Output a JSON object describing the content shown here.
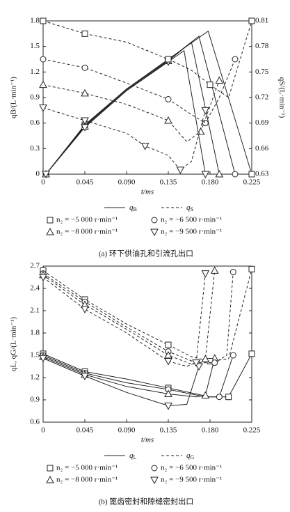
{
  "chart_data": [
    {
      "type": "line",
      "caption": "(a) 环下供油孔和引流孔出口",
      "x_label": "t/ms",
      "y_label": "qB/(L·min⁻¹)",
      "y2_label": "qS/(L·min⁻¹)",
      "xlim": [
        0,
        0.225
      ],
      "xticks": [
        0,
        0.045,
        {
          "value": 0.09,
          "label": "0.090"
        },
        0.135,
        {
          "value": 0.18,
          "label": "0.180"
        },
        0.225
      ],
      "ylim": [
        0,
        1.8
      ],
      "yticks": [
        0,
        0.3,
        0.6,
        0.9,
        1.2,
        1.5,
        1.8
      ],
      "y2lim": [
        0.63,
        0.81
      ],
      "y2ticks": [
        0.63,
        0.66,
        0.69,
        0.72,
        0.75,
        0.78,
        0.81
      ],
      "speeds": [
        {
          "name": "n₂ = −5 000 r·min⁻¹",
          "marker": "square"
        },
        {
          "name": "n₂ = −6 500 r·min⁻¹",
          "marker": "circle"
        },
        {
          "name": "n₂ = −8 000 r·min⁻¹",
          "marker": "triangle"
        },
        {
          "name": "n₂ = −9 500 r·min⁻¹",
          "marker": "triangle-down"
        }
      ],
      "groups": [
        {
          "name": "qB",
          "dashed": false,
          "series": [
            {
              "x": [
                0.003,
                0.045,
                0.09,
                0.135,
                0.178,
                0.225
              ],
              "values": [
                0,
                0.58,
                1.0,
                1.35,
                1.68,
                0
              ]
            },
            {
              "x": [
                0.003,
                0.045,
                0.09,
                0.135,
                0.168,
                0.207
              ],
              "values": [
                0,
                0.57,
                1.0,
                1.34,
                1.62,
                0
              ]
            },
            {
              "x": [
                0.003,
                0.045,
                0.09,
                0.135,
                0.16,
                0.19
              ],
              "values": [
                0,
                0.56,
                0.99,
                1.33,
                1.55,
                0
              ]
            },
            {
              "x": [
                0.003,
                0.045,
                0.09,
                0.135,
                0.152,
                0.175
              ],
              "values": [
                0,
                0.55,
                0.98,
                1.32,
                1.45,
                0
              ]
            }
          ]
        },
        {
          "name": "qS",
          "dashed": true,
          "axis": "y2",
          "series": [
            {
              "x": [
                0,
                0.045,
                0.09,
                0.135,
                0.16,
                0.18,
                0.2,
                0.225
              ],
              "values": [
                0.81,
                0.795,
                0.785,
                0.765,
                0.752,
                0.735,
                0.72,
                0.81
              ]
            },
            {
              "x": [
                0,
                0.045,
                0.09,
                0.135,
                0.16,
                0.175,
                0.19,
                0.207
              ],
              "values": [
                0.765,
                0.755,
                0.737,
                0.718,
                0.7,
                0.69,
                0.72,
                0.765
              ]
            },
            {
              "x": [
                0,
                0.045,
                0.09,
                0.135,
                0.155,
                0.17,
                0.19
              ],
              "values": [
                0.735,
                0.725,
                0.712,
                0.693,
                0.668,
                0.68,
                0.74
              ]
            },
            {
              "x": [
                0,
                0.045,
                0.09,
                0.11,
                0.135,
                0.148,
                0.16,
                0.175
              ],
              "values": [
                0.708,
                0.693,
                0.678,
                0.663,
                0.652,
                0.635,
                0.645,
                0.705
              ]
            }
          ]
        }
      ]
    },
    {
      "type": "line",
      "caption": "(b) 篦齿密封和隙缝密封出口",
      "x_label": "t/ms",
      "y_label": "qL, qG/(L·min⁻¹)",
      "xlim": [
        0,
        0.225
      ],
      "xticks": [
        0,
        0.045,
        {
          "value": 0.09,
          "label": "0.090"
        },
        0.135,
        {
          "value": 0.18,
          "label": "0.180"
        },
        0.225
      ],
      "ylim": [
        0.6,
        2.7
      ],
      "yticks": [
        0.6,
        0.9,
        1.2,
        1.5,
        1.8,
        2.1,
        2.4,
        2.7
      ],
      "speeds": [
        {
          "name": "n₂ = −5 000 r·min⁻¹",
          "marker": "square"
        },
        {
          "name": "n₂ = −6 500 r·min⁻¹",
          "marker": "circle"
        },
        {
          "name": "n₂ = −8 000 r·min⁻¹",
          "marker": "triangle"
        },
        {
          "name": "n₂ = −9 500 r·min⁻¹",
          "marker": "triangle-down"
        }
      ],
      "groups": [
        {
          "name": "qL",
          "dashed": false,
          "series": [
            {
              "x": [
                0,
                0.045,
                0.09,
                0.135,
                0.18,
                0.2,
                0.225
              ],
              "values": [
                1.52,
                1.28,
                1.18,
                1.06,
                0.94,
                0.94,
                1.52
              ]
            },
            {
              "x": [
                0,
                0.045,
                0.09,
                0.135,
                0.175,
                0.19,
                0.205
              ],
              "values": [
                1.5,
                1.26,
                1.13,
                1.04,
                0.94,
                0.94,
                1.5
              ]
            },
            {
              "x": [
                0,
                0.045,
                0.09,
                0.135,
                0.165,
                0.175,
                0.185
              ],
              "values": [
                1.48,
                1.24,
                1.08,
                0.98,
                0.94,
                0.96,
                1.46
              ]
            },
            {
              "x": [
                0,
                0.045,
                0.09,
                0.135,
                0.155,
                0.168
              ],
              "values": [
                1.46,
                1.22,
                1.0,
                0.82,
                0.84,
                1.35
              ]
            }
          ]
        },
        {
          "name": "qG",
          "dashed": true,
          "series": [
            {
              "x": [
                0,
                0.045,
                0.09,
                0.135,
                0.16,
                0.18,
                0.2,
                0.225
              ],
              "values": [
                2.64,
                2.25,
                1.92,
                1.64,
                1.48,
                1.42,
                1.45,
                2.66
              ]
            },
            {
              "x": [
                0,
                0.045,
                0.09,
                0.135,
                0.165,
                0.185,
                0.198,
                0.205
              ],
              "values": [
                2.6,
                2.22,
                1.88,
                1.55,
                1.4,
                1.4,
                1.5,
                2.62
              ]
            },
            {
              "x": [
                0,
                0.045,
                0.09,
                0.135,
                0.16,
                0.175,
                0.185
              ],
              "values": [
                2.58,
                2.18,
                1.85,
                1.5,
                1.38,
                1.45,
                2.64
              ]
            },
            {
              "x": [
                0,
                0.045,
                0.09,
                0.135,
                0.155,
                0.165,
                0.175
              ],
              "values": [
                2.55,
                2.12,
                1.8,
                1.42,
                1.35,
                1.4,
                2.6
              ]
            }
          ]
        }
      ]
    }
  ]
}
